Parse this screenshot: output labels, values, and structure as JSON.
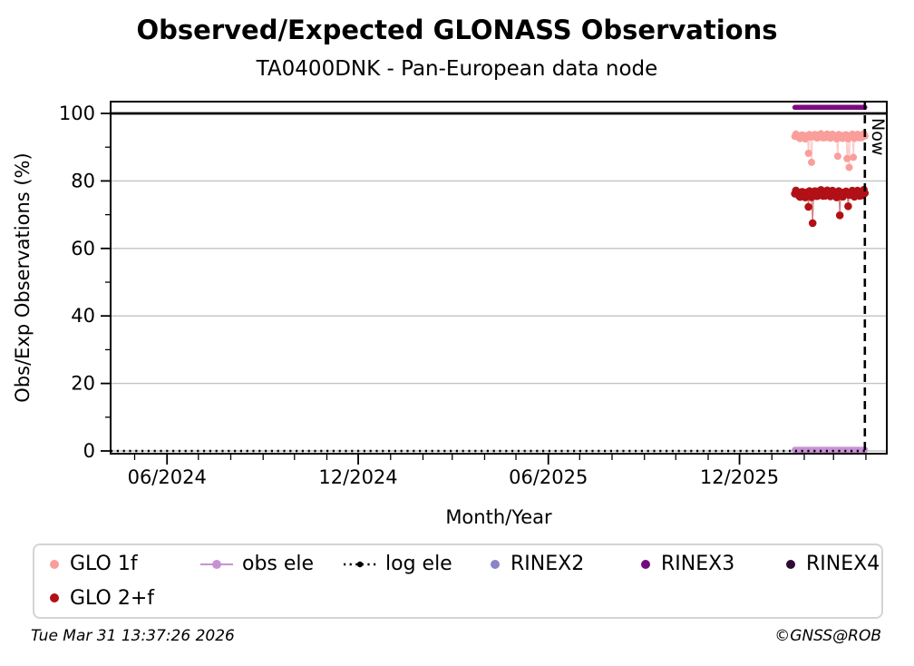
{
  "title": "Observed/Expected GLONASS Observations",
  "subtitle": "TA0400DNK - Pan-European data node",
  "footer": {
    "timestamp": "Tue Mar 31 13:37:26 2026",
    "copyright": "©GNSS@ROB"
  },
  "colors": {
    "glo_1f": "#fa9e9b",
    "glo_2f": "#b11116",
    "obs_ele": "#c891d4",
    "log_ele": "#000000",
    "rinex2": "#8a86c6",
    "rinex3": "#7d0a82",
    "rinex4": "#2f0a33",
    "gridline": "#c3c3c3",
    "hundred_line": "#000000",
    "frame": "#000000"
  },
  "legend": {
    "items": [
      {
        "id": "glo-1f",
        "label": "GLO 1f",
        "marker": "dot",
        "color": "#fa9e9b",
        "row": 1,
        "col": 1
      },
      {
        "id": "obs-ele",
        "label": "obs ele",
        "marker": "line-dot",
        "color": "#c891d4",
        "row": 1,
        "col": 2
      },
      {
        "id": "log-ele",
        "label": "log ele",
        "marker": "dotted-line-dot",
        "color": "#000000",
        "row": 1,
        "col": 3
      },
      {
        "id": "rinex2",
        "label": "RINEX2",
        "marker": "dot",
        "color": "#8a86c6",
        "row": 1,
        "col": 4
      },
      {
        "id": "rinex3",
        "label": "RINEX3",
        "marker": "dot",
        "color": "#730b7c",
        "row": 1,
        "col": 5
      },
      {
        "id": "rinex4",
        "label": "RINEX4",
        "marker": "dot",
        "color": "#2f0a33",
        "row": 1,
        "col": 6
      },
      {
        "id": "glo-2f",
        "label": "GLO 2+f",
        "marker": "dot",
        "color": "#b11116",
        "row": 2,
        "col": 1
      }
    ]
  },
  "chart_data": {
    "type": "scatter",
    "title": "Observed/Expected GLONASS Observations",
    "subtitle": "TA0400DNK - Pan-European data node",
    "xlabel": "Month/Year",
    "ylabel": "Obs/Exp Observations (%)",
    "ylim": [
      0,
      100
    ],
    "y_major_ticks": [
      0,
      20,
      40,
      60,
      80,
      100
    ],
    "y_minor_ticks": [
      10,
      30,
      50,
      70,
      90
    ],
    "grid": "horizontal-major",
    "hundred_reference_line": 100,
    "x_start": "2024-04-08",
    "x_end": "2026-04-21",
    "x_major_ticks": [
      {
        "date": "2024-06-01",
        "label": "06/2024"
      },
      {
        "date": "2024-12-01",
        "label": "12/2024"
      },
      {
        "date": "2025-06-01",
        "label": "06/2025"
      },
      {
        "date": "2025-12-01",
        "label": "12/2025"
      }
    ],
    "x_minor_tick_interval": "month",
    "now_marker": {
      "date": "2026-03-31",
      "label": "Now"
    },
    "legend_position": "bottom",
    "series": [
      {
        "name": "GLO 1f",
        "type": "scatter-line",
        "color": "#fa9e9b",
        "marker_radius": 4.0,
        "start": "2026-01-23",
        "end": "2026-03-31",
        "value": 93.2,
        "wave": 0.55,
        "outliers": [
          [
            "2026-02-05",
            88.2
          ],
          [
            "2026-02-08",
            85.5
          ],
          [
            "2026-03-05",
            87.3
          ],
          [
            "2026-03-14",
            86.6
          ],
          [
            "2026-03-16",
            84.0
          ],
          [
            "2026-03-20",
            87.0
          ]
        ]
      },
      {
        "name": "GLO 2+f",
        "type": "scatter-line",
        "color": "#b11116",
        "marker_radius": 4.3,
        "start": "2026-01-23",
        "end": "2026-03-31",
        "value": 76.2,
        "wave": 0.8,
        "outliers": [
          [
            "2026-02-05",
            72.3
          ],
          [
            "2026-02-09",
            67.5
          ],
          [
            "2026-03-07",
            69.8
          ],
          [
            "2026-03-15",
            72.5
          ]
        ]
      },
      {
        "name": "obs ele",
        "type": "thick-line",
        "color": "#c891d4",
        "width": 7,
        "start": "2026-01-23",
        "end": "2026-03-31",
        "value": 0.3
      },
      {
        "name": "log ele",
        "type": "dotted-line",
        "color": "#000000",
        "width": 2.6,
        "start": "2024-04-08",
        "end": "2026-03-31",
        "value": 0
      },
      {
        "name": "RINEX2",
        "type": "none",
        "color": "#8a86c6"
      },
      {
        "name": "RINEX3",
        "type": "thick-line",
        "color": "#7d0a82",
        "width": 5.5,
        "start": "2026-01-23",
        "end": "2026-03-31",
        "value": 101.8
      },
      {
        "name": "RINEX4",
        "type": "none",
        "color": "#2f0a33"
      }
    ]
  }
}
